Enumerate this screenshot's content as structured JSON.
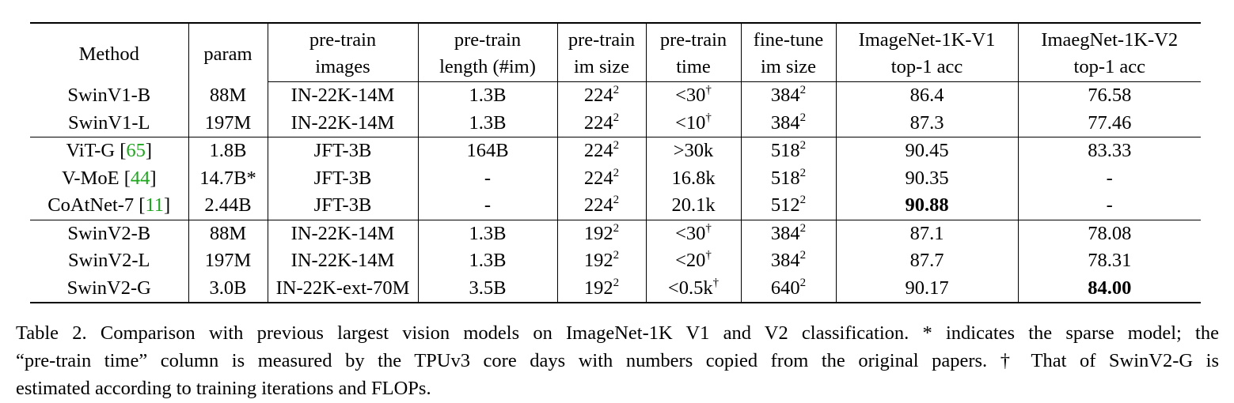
{
  "table": {
    "header": {
      "top": [
        "",
        "",
        "pre-train",
        "pre-train",
        "pre-train",
        "pre-train",
        "fine-tune",
        "ImageNet-1K-V1",
        "ImaegNet-1K-V2"
      ],
      "bottom": [
        "",
        "",
        "images",
        "length (#im)",
        "im size",
        "time",
        "im size",
        "top-1 acc",
        "top-1 acc"
      ],
      "method": "Method",
      "param": "param"
    },
    "groups": [
      {
        "rows": [
          {
            "method": "SwinV1-B",
            "cite": "",
            "param": "88M",
            "images": "IN-22K-14M",
            "length": "1.3B",
            "imsize": "224",
            "imsize_exp": "2",
            "time": "<30",
            "time_mark": "†",
            "ft": "384",
            "ft_exp": "2",
            "v1": "86.4",
            "v2": "76.58"
          },
          {
            "method": "SwinV1-L",
            "cite": "",
            "param": "197M",
            "images": "IN-22K-14M",
            "length": "1.3B",
            "imsize": "224",
            "imsize_exp": "2",
            "time": "<10",
            "time_mark": "†",
            "ft": "384",
            "ft_exp": "2",
            "v1": "87.3",
            "v2": "77.46"
          }
        ]
      },
      {
        "rows": [
          {
            "method": "ViT-G [",
            "cite": "65",
            "cite_close": "]",
            "param": "1.8B",
            "images": "JFT-3B",
            "length": "164B",
            "imsize": "224",
            "imsize_exp": "2",
            "time": ">30k",
            "time_mark": "",
            "ft": "518",
            "ft_exp": "2",
            "v1": "90.45",
            "v2": "83.33"
          },
          {
            "method": "V-MoE [",
            "cite": "44",
            "cite_close": "]",
            "param": "14.7B*",
            "images": "JFT-3B",
            "length": "-",
            "imsize": "224",
            "imsize_exp": "2",
            "time": "16.8k",
            "time_mark": "",
            "ft": "518",
            "ft_exp": "2",
            "v1": "90.35",
            "v2": "-"
          },
          {
            "method": "CoAtNet-7 [",
            "cite": "11",
            "cite_close": "]",
            "param": "2.44B",
            "images": "JFT-3B",
            "length": "-",
            "imsize": "224",
            "imsize_exp": "2",
            "time": "20.1k",
            "time_mark": "",
            "ft": "512",
            "ft_exp": "2",
            "v1": "90.88",
            "v2": "-"
          }
        ]
      },
      {
        "rows": [
          {
            "method": "SwinV2-B",
            "cite": "",
            "param": "88M",
            "images": "IN-22K-14M",
            "length": "1.3B",
            "imsize": "192",
            "imsize_exp": "2",
            "time": "<30",
            "time_mark": "†",
            "ft": "384",
            "ft_exp": "2",
            "v1": "87.1",
            "v2": "78.08"
          },
          {
            "method": "SwinV2-L",
            "cite": "",
            "param": "197M",
            "images": "IN-22K-14M",
            "length": "1.3B",
            "imsize": "192",
            "imsize_exp": "2",
            "time": "<20",
            "time_mark": "†",
            "ft": "384",
            "ft_exp": "2",
            "v1": "87.7",
            "v2": "78.31"
          },
          {
            "method": "SwinV2-G",
            "cite": "",
            "param": "3.0B",
            "images": "IN-22K-ext-70M",
            "length": "3.5B",
            "imsize": "192",
            "imsize_exp": "2",
            "time": "<0.5k",
            "time_mark": "†",
            "ft": "640",
            "ft_exp": "2",
            "v1": "90.17",
            "v2": "84.00"
          }
        ]
      }
    ]
  },
  "caption": {
    "line1": "Table 2. Comparison with previous largest vision models on ImageNet-1K V1 and V2 classification. * indicates the sparse model; the",
    "line2": "“pre-train time” column is measured by the TPUv3 core days with numbers copied from the original papers. † That of SwinV2-G is",
    "line3": "estimated according to training iterations and FLOPs."
  },
  "colors": {
    "citation": "#1ea61e",
    "text": "#000000"
  }
}
